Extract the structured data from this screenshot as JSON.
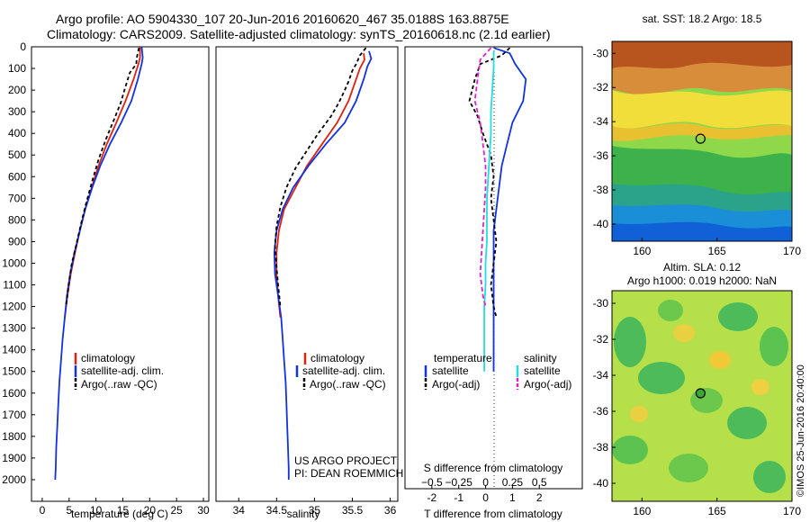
{
  "header": {
    "line1": "Argo profile: AO 5904330_107 20-Jun-2016 20160620_467 35.0188S 163.8875E",
    "line2": "Climatology: CARS2009. Satellite-adjusted climatology: synTS_20160618.nc (2.1d earlier)"
  },
  "colors": {
    "climatology": "#dd2211",
    "satellite": "#1133dd",
    "argo": "#000000",
    "satellite_salinity": "#22dddd",
    "argo_salinity": "#dd22cc"
  },
  "project": {
    "line1": "US ARGO PROJECT",
    "line2": "PI: DEAN ROEMMICH"
  },
  "stamp": "©IMOS 25-Jun-2016 20:40:00",
  "sst_panel": {
    "title": "sat. SST: 18.2 Argo: 18.5",
    "marker": "argo-position"
  },
  "sla_panel": {
    "title1": "Altim. SLA: 0.12",
    "title2": "Argo h1000: 0.019 h2000: NaN"
  },
  "chart_data": [
    {
      "id": "temperature",
      "type": "line",
      "xlabel": "temperature (deg C)",
      "ylabel": "",
      "xlim": [
        -2,
        31
      ],
      "ylim": [
        2100,
        0
      ],
      "xticks": [
        0,
        5,
        10,
        15,
        20,
        25,
        30
      ],
      "yticks": [
        0,
        100,
        200,
        300,
        400,
        500,
        600,
        700,
        800,
        900,
        1000,
        1100,
        1200,
        1300,
        1400,
        1500,
        1600,
        1700,
        1800,
        1900,
        2000
      ],
      "legend": [
        "climatology",
        "satellite-adj. clim.",
        "Argo(..raw -QC)"
      ],
      "series": [
        {
          "name": "climatology",
          "color": "#dd2211",
          "dash": "",
          "points": [
            [
              18.2,
              0
            ],
            [
              18.2,
              50
            ],
            [
              17.9,
              80
            ],
            [
              17.0,
              150
            ],
            [
              15.5,
              250
            ],
            [
              13.8,
              350
            ],
            [
              12.0,
              450
            ],
            [
              10.5,
              550
            ],
            [
              9.2,
              650
            ],
            [
              8.0,
              750
            ],
            [
              7.0,
              850
            ],
            [
              6.1,
              950
            ],
            [
              5.3,
              1050
            ],
            [
              4.7,
              1150
            ],
            [
              4.2,
              1250
            ]
          ]
        },
        {
          "name": "satellite-adj. clim.",
          "color": "#1133dd",
          "dash": "",
          "points": [
            [
              18.5,
              0
            ],
            [
              18.7,
              50
            ],
            [
              18.5,
              80
            ],
            [
              17.8,
              150
            ],
            [
              16.6,
              250
            ],
            [
              14.7,
              350
            ],
            [
              12.6,
              450
            ],
            [
              10.8,
              550
            ],
            [
              9.3,
              650
            ],
            [
              8.0,
              750
            ],
            [
              7.0,
              850
            ],
            [
              6.0,
              950
            ],
            [
              5.2,
              1050
            ],
            [
              4.6,
              1150
            ],
            [
              4.2,
              1250
            ],
            [
              3.8,
              1350
            ],
            [
              3.5,
              1450
            ],
            [
              3.2,
              1550
            ],
            [
              3.0,
              1650
            ],
            [
              2.8,
              1750
            ],
            [
              2.6,
              1850
            ],
            [
              2.5,
              1950
            ],
            [
              2.4,
              2000
            ]
          ]
        },
        {
          "name": "Argo(..raw -QC)",
          "color": "#000000",
          "dash": "4,3",
          "points": [
            [
              18.0,
              5
            ],
            [
              17.6,
              50
            ],
            [
              17.5,
              80
            ],
            [
              16.3,
              120
            ],
            [
              15.3,
              200
            ],
            [
              14.6,
              260
            ],
            [
              13.3,
              340
            ],
            [
              11.8,
              430
            ],
            [
              10.5,
              520
            ],
            [
              9.3,
              620
            ],
            [
              8.2,
              720
            ],
            [
              7.2,
              820
            ],
            [
              6.3,
              920
            ],
            [
              5.5,
              1000
            ],
            [
              4.9,
              1100
            ],
            [
              4.4,
              1200
            ]
          ]
        }
      ]
    },
    {
      "id": "salinity",
      "type": "line",
      "xlabel": "salinity",
      "ylabel": "",
      "xlim": [
        33.7,
        36.1
      ],
      "ylim": [
        2100,
        0
      ],
      "xticks": [
        34,
        34.5,
        35,
        35.5,
        36
      ],
      "yticks": [],
      "legend": [
        "climatology",
        "satellite-adj. clim.",
        "Argo(..raw -QC)"
      ],
      "series": [
        {
          "name": "climatology",
          "color": "#dd2211",
          "dash": "",
          "points": [
            [
              35.65,
              30
            ],
            [
              35.66,
              60
            ],
            [
              35.6,
              100
            ],
            [
              35.55,
              150
            ],
            [
              35.45,
              250
            ],
            [
              35.3,
              350
            ],
            [
              35.1,
              450
            ],
            [
              34.9,
              550
            ],
            [
              34.75,
              650
            ],
            [
              34.6,
              750
            ],
            [
              34.53,
              850
            ],
            [
              34.5,
              950
            ],
            [
              34.5,
              1050
            ],
            [
              34.52,
              1150
            ],
            [
              34.55,
              1250
            ]
          ]
        },
        {
          "name": "satellite-adj. clim.",
          "color": "#1133dd",
          "dash": "",
          "points": [
            [
              35.72,
              20
            ],
            [
              35.75,
              55
            ],
            [
              35.7,
              90
            ],
            [
              35.65,
              150
            ],
            [
              35.55,
              250
            ],
            [
              35.4,
              350
            ],
            [
              35.15,
              450
            ],
            [
              34.92,
              550
            ],
            [
              34.72,
              650
            ],
            [
              34.58,
              750
            ],
            [
              34.5,
              850
            ],
            [
              34.47,
              950
            ],
            [
              34.48,
              1050
            ],
            [
              34.52,
              1150
            ],
            [
              34.56,
              1250
            ],
            [
              34.58,
              1350
            ],
            [
              34.6,
              1450
            ],
            [
              34.62,
              1550
            ],
            [
              34.63,
              1650
            ],
            [
              34.64,
              1750
            ],
            [
              34.65,
              1850
            ],
            [
              34.66,
              1950
            ],
            [
              34.66,
              2000
            ]
          ]
        },
        {
          "name": "Argo(..raw -QC)",
          "color": "#000000",
          "dash": "4,3",
          "points": [
            [
              35.68,
              5
            ],
            [
              35.6,
              40
            ],
            [
              35.55,
              80
            ],
            [
              35.5,
              110
            ],
            [
              35.45,
              160
            ],
            [
              35.4,
              200
            ],
            [
              35.32,
              260
            ],
            [
              35.22,
              320
            ],
            [
              35.05,
              400
            ],
            [
              34.9,
              480
            ],
            [
              34.75,
              560
            ],
            [
              34.63,
              650
            ],
            [
              34.55,
              740
            ],
            [
              34.5,
              830
            ],
            [
              34.48,
              920
            ],
            [
              34.5,
              1020
            ],
            [
              34.52,
              1100
            ],
            [
              34.55,
              1200
            ]
          ]
        }
      ]
    },
    {
      "id": "differences",
      "type": "line",
      "xlabel": "T difference from climatology",
      "x2label": "S difference from climatology",
      "ylabel": "",
      "xlim": [
        -3,
        3.6
      ],
      "ylim": [
        2100,
        0
      ],
      "xticks": [
        -2,
        -1,
        0,
        1,
        2
      ],
      "x2ticks": [
        -0.5,
        -0.25,
        0,
        0.25,
        0.5
      ],
      "x2ticklabels": [
        "−0.5",
        "−0.25",
        "0",
        "0.25",
        "0.5"
      ],
      "yticks": [],
      "legend_headers": [
        "temperature",
        "salinity"
      ],
      "legend": [
        "satellite",
        "Argo(-adj)",
        "satellite",
        "Argo(-adj)"
      ],
      "series": [
        {
          "name": "satellite",
          "group": "temperature",
          "color": "#1133dd",
          "dash": "",
          "points": [
            [
              0.3,
              5
            ],
            [
              0.9,
              30
            ],
            [
              1.1,
              80
            ],
            [
              1.5,
              150
            ],
            [
              1.4,
              250
            ],
            [
              1.0,
              350
            ],
            [
              0.8,
              450
            ],
            [
              0.6,
              550
            ],
            [
              0.5,
              650
            ],
            [
              0.4,
              750
            ],
            [
              0.3,
              850
            ],
            [
              0.3,
              950
            ],
            [
              0.3,
              1050
            ],
            [
              0.3,
              1150
            ],
            [
              0.3,
              1250
            ],
            [
              0.3,
              1350
            ],
            [
              0.3,
              1450
            ],
            [
              0.3,
              1500
            ]
          ]
        },
        {
          "name": "Argo(-adj)",
          "group": "temperature",
          "color": "#000000",
          "dash": "4,3",
          "points": [
            [
              0.9,
              5
            ],
            [
              0.6,
              40
            ],
            [
              -0.2,
              80
            ],
            [
              -0.4,
              150
            ],
            [
              -0.6,
              250
            ],
            [
              -0.3,
              320
            ],
            [
              -0.1,
              400
            ],
            [
              0.2,
              500
            ],
            [
              0.3,
              600
            ],
            [
              0.2,
              700
            ],
            [
              0.3,
              800
            ],
            [
              0.4,
              900
            ],
            [
              0.3,
              1000
            ],
            [
              0.2,
              1100
            ],
            [
              0.3,
              1200
            ],
            [
              0.4,
              1250
            ]
          ]
        },
        {
          "name": "satellite",
          "group": "salinity",
          "color": "#22dddd",
          "dash": "",
          "points": [
            [
              0.3,
              20
            ],
            [
              0.3,
              100
            ],
            [
              0.25,
              200
            ],
            [
              0.2,
              300
            ],
            [
              0.2,
              400
            ],
            [
              0.15,
              500
            ],
            [
              0.1,
              600
            ],
            [
              0.05,
              700
            ],
            [
              0.05,
              800
            ],
            [
              0.05,
              900
            ],
            [
              0.0,
              1000
            ],
            [
              0.0,
              1100
            ],
            [
              -0.05,
              1200
            ],
            [
              -0.05,
              1300
            ],
            [
              -0.05,
              1400
            ],
            [
              -0.05,
              1500
            ]
          ]
        },
        {
          "name": "Argo(-adj)",
          "group": "salinity",
          "color": "#dd22cc",
          "dash": "5,3",
          "points": [
            [
              0.2,
              5
            ],
            [
              -0.2,
              60
            ],
            [
              -0.3,
              150
            ],
            [
              -0.4,
              250
            ],
            [
              -0.2,
              350
            ],
            [
              -0.1,
              450
            ],
            [
              0.0,
              550
            ],
            [
              0.0,
              650
            ],
            [
              -0.05,
              750
            ],
            [
              -0.1,
              850
            ],
            [
              -0.15,
              950
            ],
            [
              -0.2,
              1050
            ],
            [
              -0.1,
              1150
            ],
            [
              0.0,
              1200
            ]
          ]
        }
      ]
    },
    {
      "id": "sst-map",
      "type": "heatmap",
      "title": "sat. SST: 18.2 Argo: 18.5",
      "xlim": [
        158,
        170
      ],
      "ylim": [
        -41,
        -29.3
      ],
      "xticks": [
        160,
        165,
        170
      ],
      "yticks": [
        -30,
        -32,
        -34,
        -36,
        -38,
        -40
      ],
      "argo_position": [
        163.9,
        -35.0
      ]
    },
    {
      "id": "sla-map",
      "type": "heatmap",
      "title": "Altim. SLA: 0.12",
      "subtitle": "Argo h1000: 0.019 h2000: NaN",
      "xlim": [
        158,
        170
      ],
      "ylim": [
        -41,
        -29.3
      ],
      "xticks": [
        160,
        165,
        170
      ],
      "yticks": [
        -30,
        -32,
        -34,
        -36,
        -38,
        -40
      ],
      "argo_position": [
        163.9,
        -35.0
      ]
    }
  ]
}
